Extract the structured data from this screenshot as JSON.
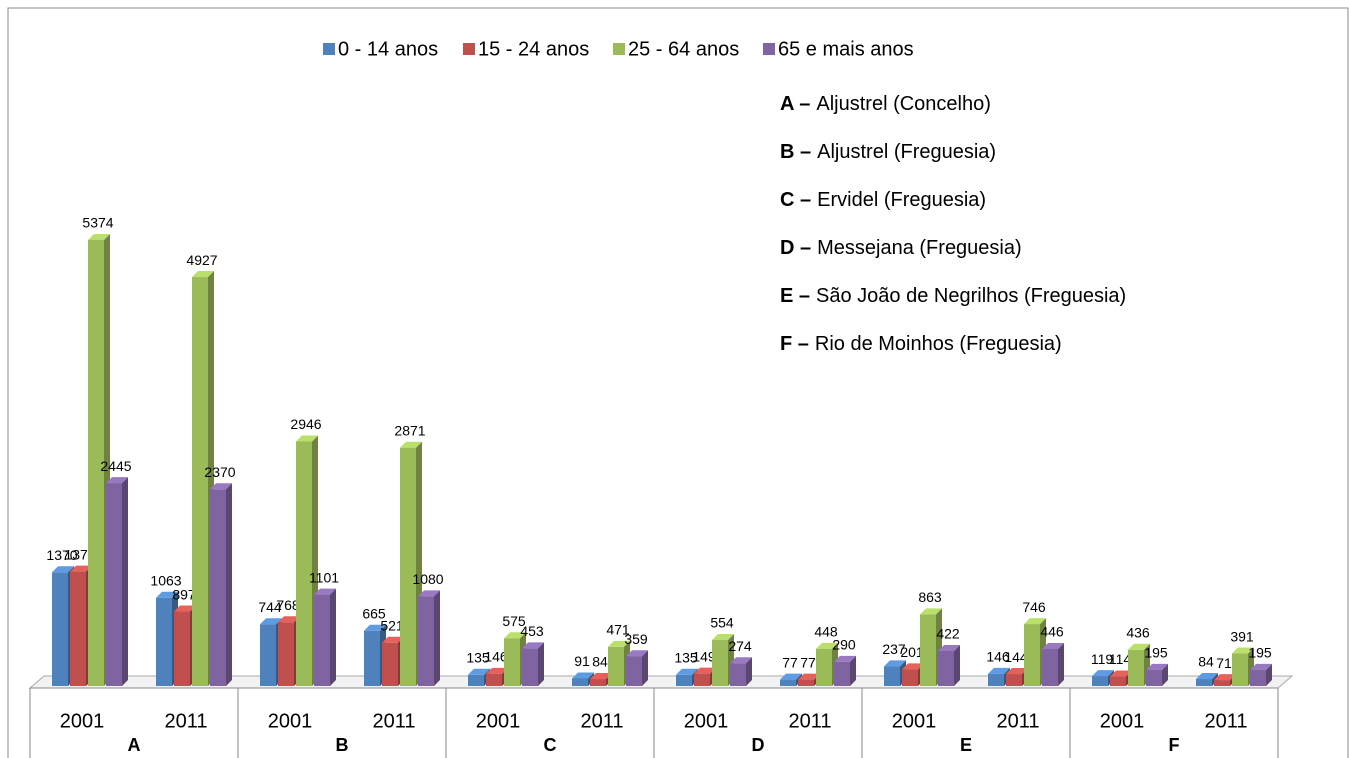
{
  "chart_data": {
    "type": "bar3d",
    "categories": [
      "2001",
      "2011",
      "2001",
      "2011",
      "2001",
      "2011",
      "2001",
      "2011",
      "2001",
      "2011",
      "2001",
      "2011"
    ],
    "groups": [
      "A",
      "B",
      "C",
      "D",
      "E",
      "F"
    ],
    "series": [
      {
        "name": "0 - 14 anos",
        "color": "#4f81bd",
        "values": [
          1370,
          1063,
          744,
          665,
          135,
          91,
          135,
          77,
          237,
          146,
          119,
          84
        ]
      },
      {
        "name": "15 - 24 anos",
        "color": "#c0504d",
        "values": [
          1378,
          897,
          768,
          521,
          146,
          84,
          149,
          77,
          201,
          144,
          114,
          71
        ]
      },
      {
        "name": "25 - 64 anos",
        "color": "#9bbb59",
        "values": [
          5374,
          4927,
          2946,
          2871,
          575,
          471,
          554,
          448,
          863,
          746,
          436,
          391
        ]
      },
      {
        "name": "65 e mais anos",
        "color": "#8064a2",
        "values": [
          2445,
          2370,
          1101,
          1080,
          453,
          359,
          274,
          290,
          422,
          446,
          195,
          195
        ]
      }
    ],
    "ylim": [
      0,
      6000
    ],
    "notes": [
      {
        "key": "A –",
        "text": "Aljustrel (Concelho)"
      },
      {
        "key": "B –",
        "text": "Aljustrel (Freguesia)"
      },
      {
        "key": "C –",
        "text": "Ervidel (Freguesia)"
      },
      {
        "key": "D –",
        "text": "Messejana (Freguesia)"
      },
      {
        "key": "E –",
        "text": "São João de Negrilhos (Freguesia)"
      },
      {
        "key": "F –",
        "text": "Rio de Moinhos (Freguesia)"
      }
    ]
  }
}
